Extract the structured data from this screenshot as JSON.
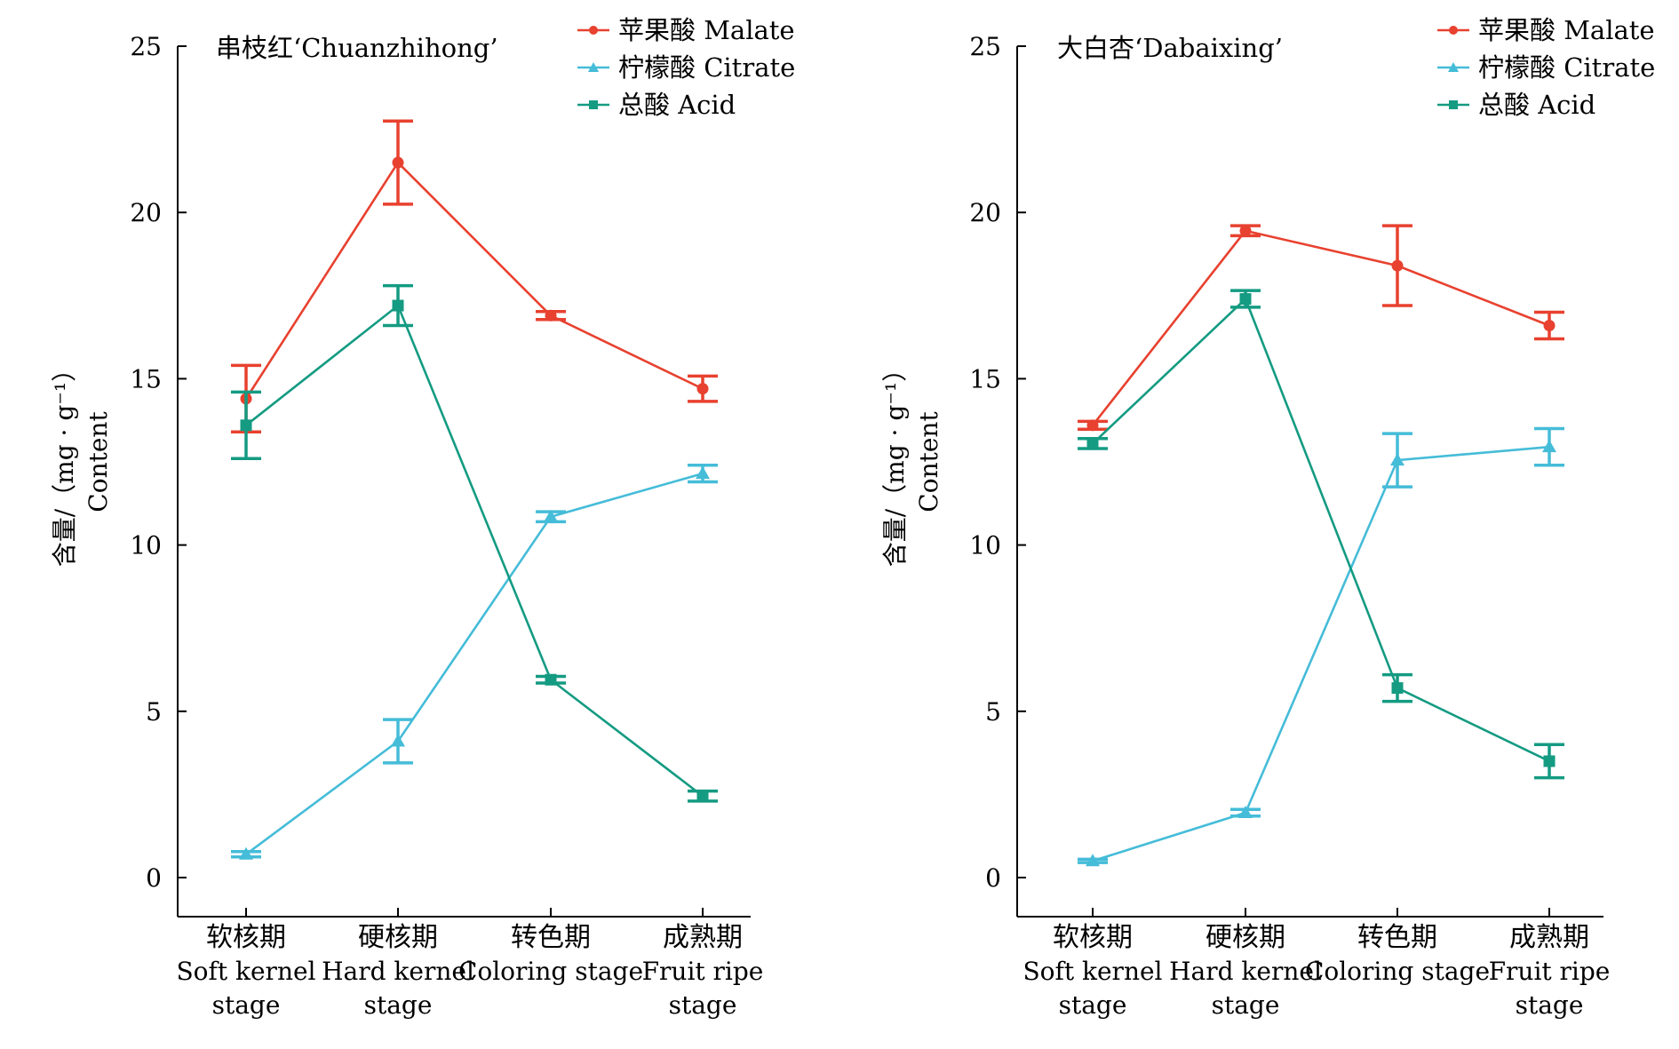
{
  "chart_data": [
    {
      "type": "line",
      "title": "串枝红‘Chuanzhihong’",
      "ylabel_cn": "含量/（mg · g⁻¹）",
      "ylabel_en": "Content",
      "ylim": [
        0,
        25
      ],
      "yticks": [
        0,
        5,
        10,
        15,
        20,
        25
      ],
      "categories": [
        {
          "cn": "软核期",
          "en1": "Soft kernel",
          "en2": "stage"
        },
        {
          "cn": "硬核期",
          "en1": "Hard kernel",
          "en2": "stage"
        },
        {
          "cn": "转色期",
          "en1": "Coloring stage",
          "en2": ""
        },
        {
          "cn": "成熟期",
          "en1": "Fruit ripe",
          "en2": "stage"
        }
      ],
      "legend_position": "top-right",
      "series": [
        {
          "name": "苹果酸 Malate",
          "color": "#e8412f",
          "marker": "circle",
          "values": [
            14.4,
            21.5,
            16.9,
            14.7
          ],
          "errors": [
            1.0,
            1.25,
            0.12,
            0.38
          ]
        },
        {
          "name": "柠檬酸 Citrate",
          "color": "#45bcd8",
          "marker": "triangle",
          "values": [
            0.7,
            4.1,
            10.85,
            12.15
          ],
          "errors": [
            0.08,
            0.65,
            0.15,
            0.25
          ]
        },
        {
          "name": "总酸 Acid",
          "color": "#149b82",
          "marker": "square",
          "values": [
            13.6,
            17.2,
            5.95,
            2.45
          ],
          "errors": [
            1.0,
            0.6,
            0.1,
            0.15
          ]
        }
      ]
    },
    {
      "type": "line",
      "title": "大白杏‘Dabaixing’",
      "ylabel_cn": "含量/（mg · g⁻¹）",
      "ylabel_en": "Content",
      "ylim": [
        0,
        25
      ],
      "yticks": [
        0,
        5,
        10,
        15,
        20,
        25
      ],
      "categories": [
        {
          "cn": "软核期",
          "en1": "Soft kernel",
          "en2": "stage"
        },
        {
          "cn": "硬核期",
          "en1": "Hard kernel",
          "en2": "stage"
        },
        {
          "cn": "转色期",
          "en1": "Coloring stage",
          "en2": ""
        },
        {
          "cn": "成熟期",
          "en1": "Fruit ripe",
          "en2": "stage"
        }
      ],
      "legend_position": "top-right",
      "series": [
        {
          "name": "苹果酸 Malate",
          "color": "#e8412f",
          "marker": "circle",
          "values": [
            13.6,
            19.45,
            18.4,
            16.6
          ],
          "errors": [
            0.12,
            0.15,
            1.2,
            0.4
          ]
        },
        {
          "name": "柠檬酸 Citrate",
          "color": "#45bcd8",
          "marker": "triangle",
          "values": [
            0.5,
            1.95,
            12.55,
            12.95
          ],
          "errors": [
            0.05,
            0.1,
            0.8,
            0.55
          ]
        },
        {
          "name": "总酸 Acid",
          "color": "#149b82",
          "marker": "square",
          "values": [
            13.05,
            17.4,
            5.7,
            3.5
          ],
          "errors": [
            0.15,
            0.25,
            0.4,
            0.5
          ]
        }
      ]
    }
  ]
}
